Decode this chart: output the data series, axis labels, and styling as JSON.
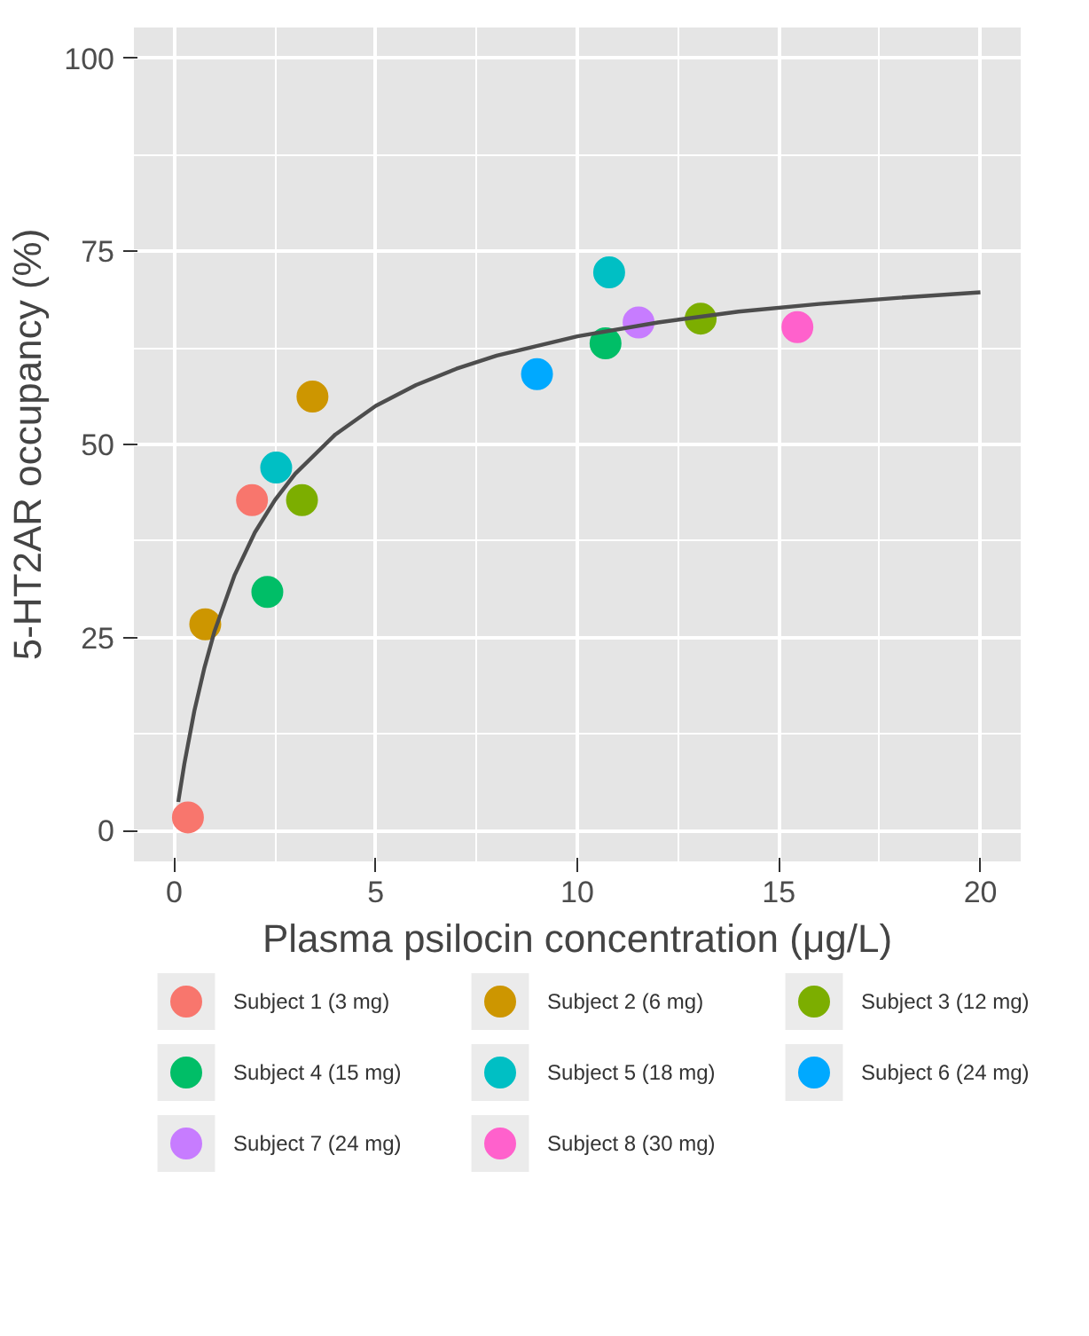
{
  "chart_data": {
    "type": "scatter",
    "xlabel": "Plasma psilocin concentration (μg/L)",
    "ylabel": "5-HT2AR occupancy (%)",
    "xlim": [
      -1,
      21
    ],
    "ylim": [
      -4,
      104
    ],
    "xticks": [
      0,
      5,
      10,
      15,
      20
    ],
    "yticks": [
      0,
      25,
      50,
      75,
      100
    ],
    "grid": true,
    "legend": "bottom",
    "marker": "circle",
    "series": [
      {
        "name": "Subject 1 (3 mg)",
        "color": "#f8766d",
        "x": [
          0.34,
          1.93
        ],
        "values": [
          1.7,
          42.8
        ]
      },
      {
        "name": "Subject 2 (6 mg)",
        "color": "#cd9600",
        "x": [
          0.77,
          3.43
        ],
        "values": [
          26.7,
          56.2
        ]
      },
      {
        "name": "Subject 3 (12 mg)",
        "color": "#7cae00",
        "x": [
          3.17,
          13.06
        ],
        "values": [
          42.8,
          66.3
        ]
      },
      {
        "name": "Subject 4 (15 mg)",
        "color": "#00be67",
        "x": [
          2.31,
          10.7
        ],
        "values": [
          30.9,
          63.1
        ]
      },
      {
        "name": "Subject 5 (18 mg)",
        "color": "#00bfc4",
        "x": [
          2.53,
          10.79
        ],
        "values": [
          47.0,
          72.3
        ]
      },
      {
        "name": "Subject 6 (24 mg)",
        "color": "#00a9ff",
        "x": [
          9.0
        ],
        "values": [
          59.1
        ]
      },
      {
        "name": "Subject 7 (24 mg)",
        "color": "#c77cff",
        "x": [
          11.52
        ],
        "values": [
          65.8
        ]
      },
      {
        "name": "Subject 8 (30 mg)",
        "color": "#ff61cc",
        "x": [
          15.46
        ],
        "values": [
          65.2
        ]
      },
      {
        "type": "line",
        "color": "#4d4d4d",
        "marker": "none",
        "x": [
          0.1,
          0.25,
          0.5,
          0.75,
          1,
          1.5,
          2,
          2.5,
          3,
          4,
          5,
          6,
          7,
          8,
          10,
          12,
          14,
          16,
          18,
          20
        ],
        "values": [
          3.7,
          8.6,
          15.5,
          21.1,
          25.8,
          33.1,
          38.6,
          42.8,
          46.2,
          51.3,
          55.0,
          57.7,
          59.8,
          61.5,
          64.0,
          65.8,
          67.2,
          68.2,
          69.0,
          69.7
        ]
      }
    ]
  }
}
